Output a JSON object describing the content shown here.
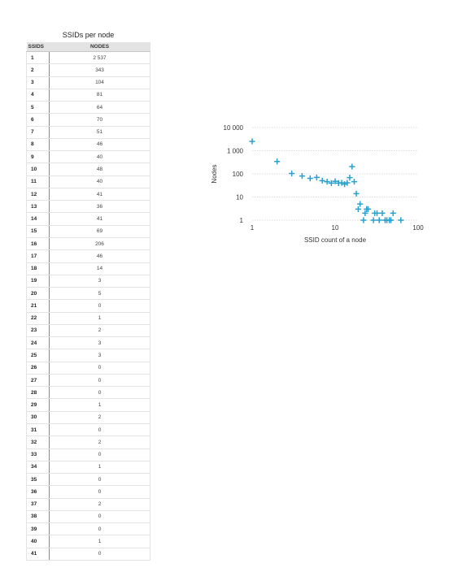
{
  "table": {
    "title": "SSIDs per node",
    "headers": [
      "SSIDS",
      "NODES"
    ],
    "rows": [
      [
        "1",
        "2 537"
      ],
      [
        "2",
        "343"
      ],
      [
        "3",
        "104"
      ],
      [
        "4",
        "81"
      ],
      [
        "5",
        "64"
      ],
      [
        "6",
        "70"
      ],
      [
        "7",
        "51"
      ],
      [
        "8",
        "46"
      ],
      [
        "9",
        "40"
      ],
      [
        "10",
        "48"
      ],
      [
        "11",
        "40"
      ],
      [
        "12",
        "41"
      ],
      [
        "13",
        "36"
      ],
      [
        "14",
        "41"
      ],
      [
        "15",
        "69"
      ],
      [
        "16",
        "206"
      ],
      [
        "17",
        "46"
      ],
      [
        "18",
        "14"
      ],
      [
        "19",
        "3"
      ],
      [
        "20",
        "5"
      ],
      [
        "21",
        "0"
      ],
      [
        "22",
        "1"
      ],
      [
        "23",
        "2"
      ],
      [
        "24",
        "3"
      ],
      [
        "25",
        "3"
      ],
      [
        "26",
        "0"
      ],
      [
        "27",
        "0"
      ],
      [
        "28",
        "0"
      ],
      [
        "29",
        "1"
      ],
      [
        "30",
        "2"
      ],
      [
        "31",
        "0"
      ],
      [
        "32",
        "2"
      ],
      [
        "33",
        "0"
      ],
      [
        "34",
        "1"
      ],
      [
        "35",
        "0"
      ],
      [
        "36",
        "0"
      ],
      [
        "37",
        "2"
      ],
      [
        "38",
        "0"
      ],
      [
        "39",
        "0"
      ],
      [
        "40",
        "1"
      ],
      [
        "41",
        "0"
      ]
    ]
  },
  "chart_data": {
    "type": "scatter",
    "xlabel": "SSID count of a node",
    "ylabel": "Nodes",
    "xscale": "log",
    "yscale": "log",
    "xlim": [
      1,
      100
    ],
    "ylim": [
      1,
      10000
    ],
    "xticks": [
      "1",
      "10",
      "100"
    ],
    "yticks": [
      "1",
      "10",
      "100",
      "1 000",
      "10 000"
    ],
    "grid": "horizontal-dotted",
    "marker": "plus",
    "color": "#2aa0cc",
    "points": [
      [
        1,
        2537
      ],
      [
        2,
        343
      ],
      [
        3,
        104
      ],
      [
        4,
        81
      ],
      [
        5,
        64
      ],
      [
        6,
        70
      ],
      [
        7,
        51
      ],
      [
        8,
        46
      ],
      [
        9,
        40
      ],
      [
        10,
        48
      ],
      [
        11,
        40
      ],
      [
        12,
        41
      ],
      [
        13,
        36
      ],
      [
        14,
        41
      ],
      [
        15,
        69
      ],
      [
        16,
        206
      ],
      [
        17,
        46
      ],
      [
        18,
        14
      ],
      [
        19,
        3
      ],
      [
        20,
        5
      ],
      [
        22,
        1
      ],
      [
        23,
        2
      ],
      [
        24,
        3
      ],
      [
        25,
        3
      ],
      [
        29,
        1
      ],
      [
        30,
        2
      ],
      [
        32,
        2
      ],
      [
        34,
        1
      ],
      [
        37,
        2
      ],
      [
        40,
        1
      ],
      [
        42,
        1
      ],
      [
        45,
        1
      ],
      [
        47,
        1
      ],
      [
        50,
        2
      ],
      [
        62,
        1
      ]
    ]
  }
}
